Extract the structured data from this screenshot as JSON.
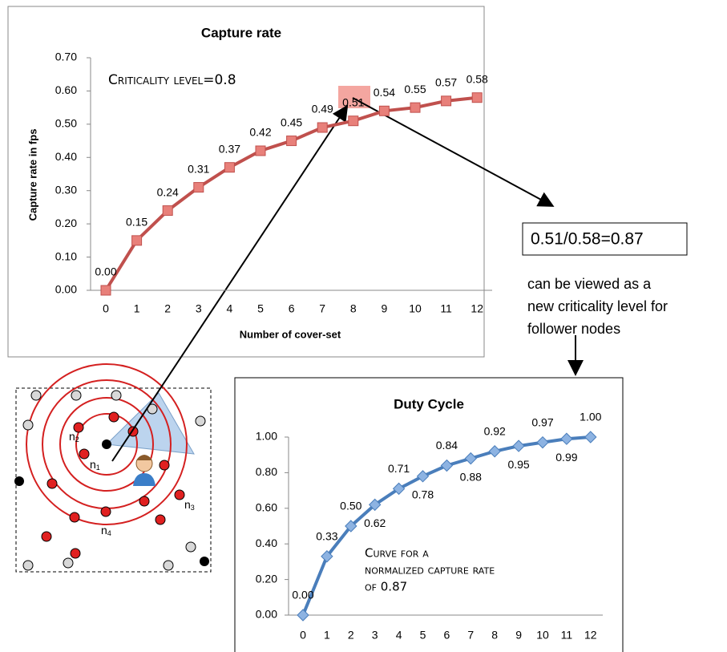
{
  "chart_data": [
    {
      "type": "line",
      "title": "Capture rate",
      "x_label": "Number of cover-set",
      "y_label": "Capture rate in fps",
      "annotation": "Criticality level=0.8",
      "categories": [
        "0",
        "1",
        "2",
        "3",
        "4",
        "5",
        "6",
        "7",
        "8",
        "9",
        "10",
        "11",
        "12"
      ],
      "values": [
        0,
        0.15,
        0.24,
        0.31,
        0.37,
        0.42,
        0.45,
        0.49,
        0.51,
        0.54,
        0.55,
        0.57,
        0.58
      ],
      "value_labels": [
        "0.00",
        "0.15",
        "0.24",
        "0.31",
        "0.37",
        "0.42",
        "0.45",
        "0.49",
        "0.51",
        "0.54",
        "0.55",
        "0.57",
        "0.58"
      ],
      "color": "#c0504d",
      "marker": "square",
      "marker_color": "#e8807a",
      "ylim": [
        0,
        0.7
      ],
      "yticks": [
        {
          "value": 0,
          "label": "0.00"
        },
        {
          "value": 0.1,
          "label": "0.10"
        },
        {
          "value": 0.2,
          "label": "0.20"
        },
        {
          "value": 0.3,
          "label": "0.30"
        },
        {
          "value": 0.4,
          "label": "0.40"
        },
        {
          "value": 0.5,
          "label": "0.50"
        },
        {
          "value": 0.6,
          "label": "0.60"
        },
        {
          "value": 0.7,
          "label": "0.70"
        }
      ]
    },
    {
      "type": "line",
      "title": "Duty Cycle",
      "annotation": [
        "Curve for a",
        "normalized capture rate",
        "of 0.87"
      ],
      "categories": [
        "0",
        "1",
        "2",
        "3",
        "4",
        "5",
        "6",
        "7",
        "8",
        "9",
        "10",
        "11",
        "12"
      ],
      "values": [
        0,
        0.33,
        0.5,
        0.62,
        0.71,
        0.78,
        0.84,
        0.88,
        0.92,
        0.95,
        0.97,
        0.99,
        1
      ],
      "value_labels": [
        "0.00",
        "0.33",
        "0.50",
        "0.62",
        "0.71",
        "0.78",
        "0.84",
        "0.88",
        "0.92",
        "0.95",
        "0.97",
        "0.99",
        "1.00"
      ],
      "color": "#4a7ebb",
      "marker": "diamond",
      "marker_color": "#8db3e2",
      "ylim": [
        0,
        1
      ],
      "yticks": [
        {
          "value": 0,
          "label": "0.00"
        },
        {
          "value": 0.2,
          "label": "0.20"
        },
        {
          "value": 0.4,
          "label": "0.40"
        },
        {
          "value": 0.6,
          "label": "0.60"
        },
        {
          "value": 0.8,
          "label": "0.80"
        },
        {
          "value": 1,
          "label": "1.00"
        }
      ]
    }
  ],
  "ratio_box": "0.51/0.58=0.87",
  "ratio_note": [
    "can be viewed as a",
    "new criticality level for",
    "follower nodes"
  ],
  "diagram": {
    "nodes": [
      {
        "base": "n",
        "sub": "1"
      },
      {
        "base": "n",
        "sub": "2"
      },
      {
        "base": "n",
        "sub": "3"
      },
      {
        "base": "n",
        "sub": "4"
      }
    ]
  }
}
